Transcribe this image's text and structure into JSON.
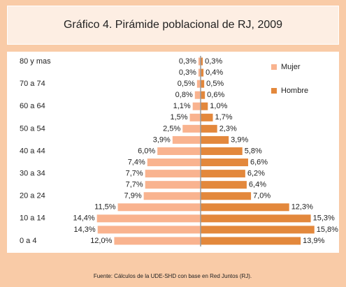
{
  "chart_data": {
    "type": "pyramid",
    "title": "Gráfico 4. Pirámide poblacional de RJ, 2009",
    "source": "Fuente: Cálculos de la UDE-SHD con base en Red Juntos (RJ).",
    "categories": [
      "80 y mas",
      null,
      "70 a 74",
      null,
      "60 a 64",
      null,
      "50 a 54",
      null,
      "40 a 44",
      null,
      "30 a 34",
      null,
      "20 a 24",
      null,
      "10 a 14",
      null,
      "0 a 4"
    ],
    "series": [
      {
        "name": "Mujer",
        "color": "#f9b38f",
        "values": [
          0.3,
          0.3,
          0.5,
          0.8,
          1.1,
          1.5,
          2.5,
          3.9,
          6.0,
          7.4,
          7.7,
          7.7,
          7.9,
          11.5,
          14.4,
          14.3,
          12.0
        ],
        "value_labels": [
          "0,3%",
          "0,3%",
          "0,5%",
          "0,8%",
          "1,1%",
          "1,5%",
          "2,5%",
          "3,9%",
          "6,0%",
          "7,4%",
          "7,7%",
          "7,7%",
          "7,9%",
          "11,5%",
          "14,4%",
          "14,3%",
          "12,0%"
        ]
      },
      {
        "name": "Hombre",
        "color": "#e3883c",
        "values": [
          0.3,
          0.4,
          0.5,
          0.6,
          1.0,
          1.7,
          2.3,
          3.9,
          5.8,
          6.6,
          6.2,
          6.4,
          7.0,
          12.3,
          15.3,
          15.8,
          13.9
        ],
        "value_labels": [
          "0,3%",
          "0,4%",
          "0,5%",
          "0,6%",
          "1,0%",
          "1,7%",
          "2,3%",
          "3,9%",
          "5,8%",
          "6,6%",
          "6,2%",
          "6,4%",
          "7,0%",
          "12,3%",
          "15,3%",
          "15,8%",
          "13,9%"
        ]
      }
    ]
  }
}
